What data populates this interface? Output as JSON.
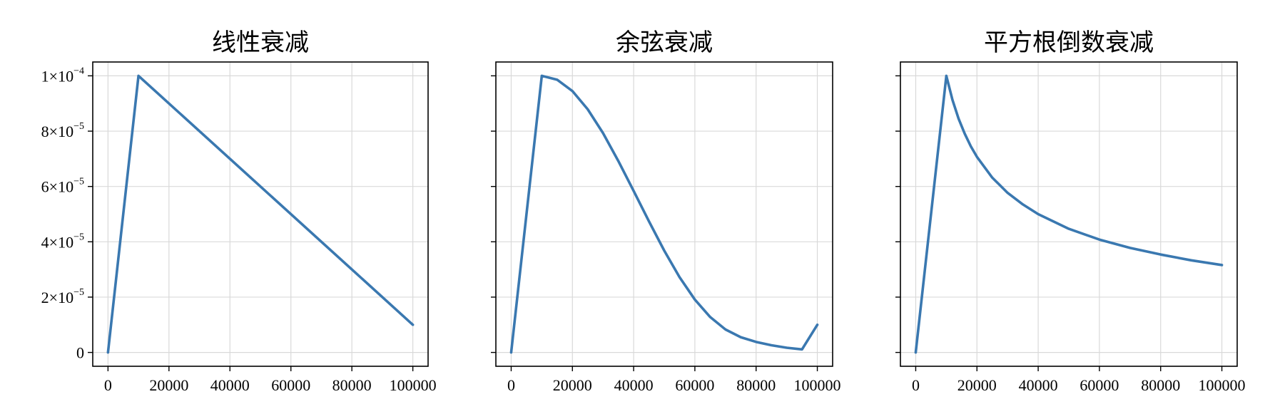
{
  "figure": {
    "colors": {
      "line": "#3a78b0",
      "grid": "#d9d9d9",
      "frame": "#000000",
      "background": "#ffffff"
    }
  },
  "chart_data": [
    {
      "type": "line",
      "title": "线性衰减",
      "xlabel": "",
      "ylabel": "",
      "xlim": [
        -5000,
        105000
      ],
      "ylim": [
        -5e-06,
        0.000105
      ],
      "xticks": [
        0,
        20000,
        40000,
        60000,
        80000,
        100000
      ],
      "xtick_labels": [
        "0",
        "20000",
        "40000",
        "60000",
        "80000",
        "100000"
      ],
      "yticks": [
        0,
        2e-05,
        4e-05,
        6e-05,
        8e-05,
        0.0001
      ],
      "ytick_labels": [
        {
          "mant": "0",
          "exp": ""
        },
        {
          "mant": "2×10",
          "exp": "−5"
        },
        {
          "mant": "4×10",
          "exp": "−5"
        },
        {
          "mant": "6×10",
          "exp": "−5"
        },
        {
          "mant": "8×10",
          "exp": "−5"
        },
        {
          "mant": "1×10",
          "exp": "−4"
        }
      ],
      "show_ytick_labels": true,
      "grid": true,
      "series": [
        {
          "x": [
            0,
            10000,
            100000
          ],
          "y": [
            0,
            0.0001,
            1e-05
          ]
        }
      ]
    },
    {
      "type": "line",
      "title": "余弦衰减",
      "xlabel": "",
      "ylabel": "",
      "xlim": [
        -5000,
        105000
      ],
      "ylim": [
        -5e-06,
        0.000105
      ],
      "xticks": [
        0,
        20000,
        40000,
        60000,
        80000,
        100000
      ],
      "xtick_labels": [
        "0",
        "20000",
        "40000",
        "60000",
        "80000",
        "100000"
      ],
      "yticks": [
        0,
        2e-05,
        4e-05,
        6e-05,
        8e-05,
        0.0001
      ],
      "ytick_labels": [],
      "show_ytick_labels": false,
      "grid": true,
      "series": [
        {
          "x": [
            0,
            10000,
            15000,
            20000,
            25000,
            30000,
            35000,
            40000,
            45000,
            50000,
            55000,
            60000,
            65000,
            70000,
            75000,
            80000,
            85000,
            90000,
            95000,
            100000
          ],
          "y": [
            0,
            0.0001,
            9.86e-05,
            9.45e-05,
            8.79e-05,
            7.93e-05,
            6.92e-05,
            5.84e-05,
            4.74e-05,
            3.68e-05,
            2.72e-05,
            1.91e-05,
            1.28e-05,
            8.3e-06,
            5.5e-06,
            3.8e-06,
            2.6e-06,
            1.7e-06,
            1.1e-06,
            1e-05
          ]
        }
      ]
    },
    {
      "type": "line",
      "title": "平方根倒数衰减",
      "xlabel": "",
      "ylabel": "",
      "xlim": [
        -5000,
        105000
      ],
      "ylim": [
        -5e-06,
        0.000105
      ],
      "xticks": [
        0,
        20000,
        40000,
        60000,
        80000,
        100000
      ],
      "xtick_labels": [
        "0",
        "20000",
        "40000",
        "60000",
        "80000",
        "100000"
      ],
      "yticks": [
        0,
        2e-05,
        4e-05,
        6e-05,
        8e-05,
        0.0001
      ],
      "ytick_labels": [],
      "show_ytick_labels": false,
      "grid": true,
      "series": [
        {
          "x": [
            0,
            10000,
            12000,
            14000,
            16000,
            18000,
            20000,
            25000,
            30000,
            35000,
            40000,
            50000,
            60000,
            70000,
            80000,
            90000,
            100000
          ],
          "y": [
            0,
            0.0001,
            9.13e-05,
            8.45e-05,
            7.91e-05,
            7.45e-05,
            7.07e-05,
            6.32e-05,
            5.77e-05,
            5.35e-05,
            5e-05,
            4.47e-05,
            4.08e-05,
            3.78e-05,
            3.54e-05,
            3.33e-05,
            3.16e-05
          ]
        }
      ]
    }
  ]
}
